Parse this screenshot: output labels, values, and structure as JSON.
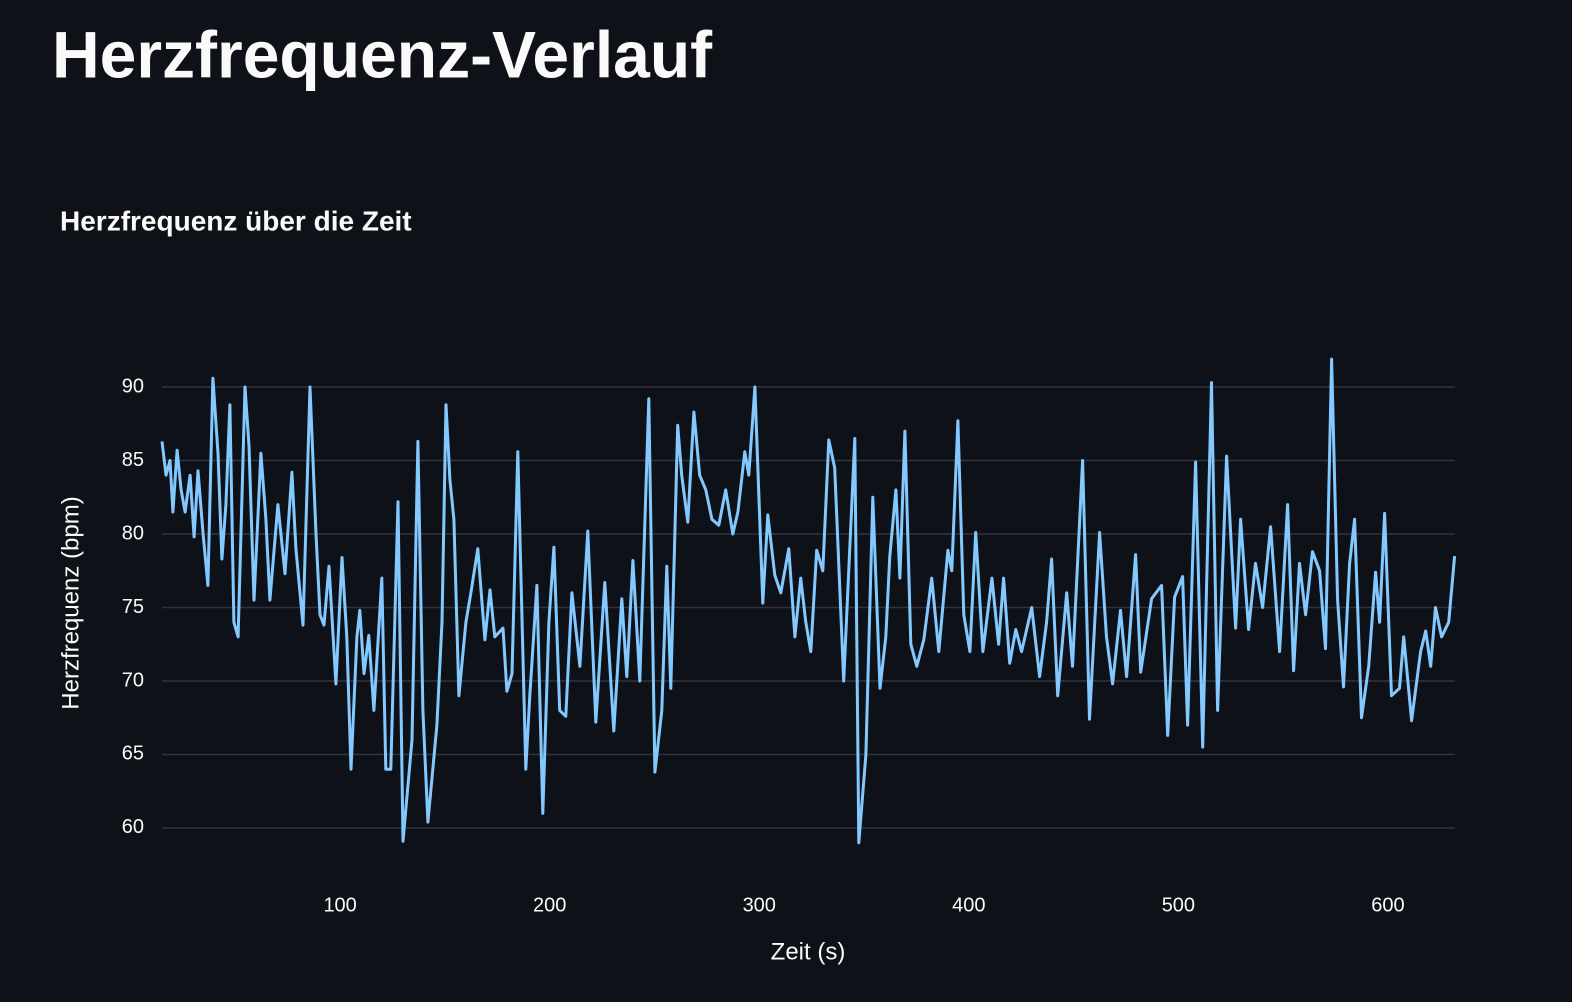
{
  "page_title": "Herzfrequenz-Verlauf",
  "chart_data": {
    "type": "line",
    "title": "Herzfrequenz über die Zeit",
    "x_label": "Zeit (s)",
    "y_label": "Herzfrequenz (bpm)",
    "color": "#83c9ff",
    "grid": true,
    "xlim": [
      15,
      632
    ],
    "ylim": [
      58.5,
      92.2
    ],
    "xticks": [
      100,
      200,
      300,
      400,
      500,
      600
    ],
    "yticks": [
      60,
      65,
      70,
      75,
      80,
      85,
      90
    ],
    "x": [
      15.0,
      16.9,
      18.8,
      20.2,
      22.2,
      24.1,
      26.0,
      28.4,
      30.3,
      32.2,
      34.6,
      36.9,
      39.3,
      41.7,
      43.6,
      45.5,
      47.4,
      49.3,
      51.3,
      54.6,
      56.5,
      58.9,
      62.2,
      64.6,
      66.5,
      70.3,
      73.7,
      77.0,
      78.9,
      82.3,
      85.6,
      88.5,
      90.4,
      92.3,
      94.7,
      98.0,
      100.9,
      103.2,
      105.2,
      108.0,
      109.4,
      111.4,
      113.7,
      116.1,
      119.9,
      121.8,
      124.2,
      127.6,
      130.0,
      134.3,
      137.1,
      139.5,
      141.9,
      146.2,
      148.6,
      150.5,
      152.4,
      154.3,
      156.7,
      160.0,
      162.4,
      165.7,
      169.1,
      171.5,
      173.8,
      177.7,
      179.6,
      182.0,
      184.8,
      188.6,
      190.5,
      193.9,
      196.7,
      199.6,
      202.0,
      204.8,
      207.7,
      210.6,
      214.4,
      218.2,
      222.0,
      226.3,
      230.6,
      234.4,
      236.8,
      239.7,
      243.0,
      247.3,
      250.2,
      253.5,
      255.9,
      257.8,
      261.1,
      263.0,
      265.9,
      268.8,
      271.6,
      274.5,
      277.4,
      280.7,
      284.0,
      287.4,
      289.8,
      293.1,
      295.0,
      297.9,
      301.7,
      304.1,
      307.4,
      310.3,
      314.1,
      317.0,
      319.8,
      322.2,
      324.6,
      327.4,
      330.3,
      333.2,
      336.0,
      340.3,
      345.6,
      347.5,
      350.9,
      354.2,
      357.6,
      360.4,
      362.3,
      365.2,
      367.1,
      369.5,
      372.3,
      375.2,
      378.5,
      382.3,
      385.7,
      390.0,
      391.9,
      394.8,
      397.6,
      400.5,
      403.3,
      406.7,
      411.0,
      414.2,
      416.6,
      419.5,
      422.4,
      425.2,
      430.0,
      433.8,
      437.1,
      439.5,
      442.4,
      446.7,
      449.5,
      454.3,
      457.6,
      462.4,
      465.7,
      468.6,
      472.4,
      475.3,
      479.6,
      482.0,
      487.2,
      492.0,
      494.9,
      498.2,
      502.0,
      504.4,
      508.2,
      511.6,
      515.8,
      518.7,
      523.0,
      527.3,
      529.7,
      533.5,
      536.8,
      540.2,
      544.0,
      548.3,
      552.1,
      555.0,
      557.8,
      560.7,
      564.0,
      567.4,
      570.2,
      573.1,
      576.0,
      578.8,
      581.7,
      584.1,
      587.4,
      590.8,
      594.1,
      596.0,
      598.4,
      601.7,
      605.5,
      607.5,
      611.3,
      615.6,
      618.0,
      620.4,
      622.7,
      625.6,
      629.0,
      631.8
    ],
    "values": [
      86.3,
      84,
      85,
      81.5,
      85.7,
      83,
      81.5,
      84,
      79.8,
      84.3,
      80,
      76.5,
      90.6,
      85.5,
      78.3,
      82,
      88.8,
      74,
      73,
      90,
      86,
      75.5,
      85.5,
      81,
      75.5,
      82,
      77.3,
      84.2,
      79,
      73.8,
      90,
      80,
      74.5,
      73.8,
      77.8,
      69.8,
      78.4,
      73,
      64,
      73,
      74.8,
      70.5,
      73.1,
      68,
      77,
      64,
      64,
      82.2,
      59.1,
      66,
      86.3,
      68,
      60.4,
      67,
      74,
      88.8,
      83.7,
      81,
      69,
      74,
      76,
      79,
      72.8,
      76.2,
      73,
      73.6,
      69.3,
      70.5,
      85.6,
      64,
      69,
      76.5,
      61,
      74,
      79.1,
      68,
      67.6,
      76,
      71,
      80.2,
      67.2,
      76.7,
      66.6,
      75.6,
      70.3,
      78.2,
      70,
      89.2,
      63.8,
      68,
      77.8,
      69.5,
      87.4,
      84,
      80.8,
      88.3,
      84,
      83,
      81,
      80.6,
      83,
      80,
      81.5,
      85.6,
      84,
      90,
      75.3,
      81.3,
      77.2,
      76,
      79,
      73,
      77,
      74,
      72,
      78.9,
      77.5,
      86.4,
      84.5,
      70,
      86.5,
      59,
      65,
      82.5,
      69.5,
      73,
      78.5,
      83,
      77,
      87,
      72.5,
      71,
      72.8,
      77,
      72,
      78.9,
      77.5,
      87.7,
      74.5,
      72,
      80.1,
      72,
      77,
      72.5,
      77,
      71.2,
      73.5,
      72,
      75,
      70.3,
      74,
      78.3,
      69,
      76,
      71,
      85,
      67.4,
      80.1,
      73,
      69.8,
      74.8,
      70.3,
      78.6,
      70.6,
      75.6,
      76.5,
      66.3,
      75.7,
      77.1,
      67,
      84.9,
      65.5,
      90.3,
      68,
      85.3,
      73.6,
      81,
      73.5,
      78,
      75,
      80.5,
      72,
      82,
      70.7,
      78,
      74.5,
      78.8,
      77.5,
      72.2,
      91.9,
      75.5,
      69.6,
      78,
      81,
      67.5,
      71,
      77.4,
      74,
      81.4,
      69,
      69.5,
      73,
      67.3,
      72,
      73.4,
      71,
      75,
      73,
      74,
      78.5
    ]
  }
}
